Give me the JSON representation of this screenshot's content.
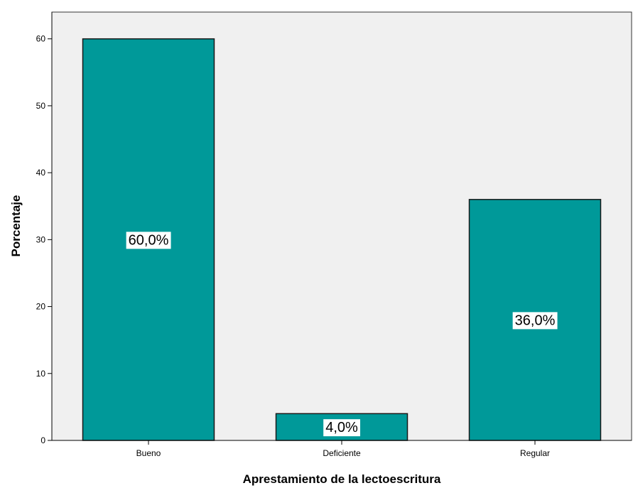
{
  "chart_data": {
    "type": "bar",
    "categories": [
      "Bueno",
      "Deficiente",
      "Regular"
    ],
    "values": [
      60,
      4,
      36
    ],
    "data_labels": [
      "60,0%",
      "4,0%",
      "36,0%"
    ],
    "title": "",
    "xlabel": "Aprestamiento de la lectoescritura",
    "ylabel": "Porcentaje",
    "ylim": [
      0,
      64
    ],
    "yticks": [
      0,
      10,
      20,
      30,
      40,
      50,
      60
    ],
    "grid": false,
    "legend": "none",
    "colors": {
      "bar_fill": "#009999",
      "bar_stroke": "#1a1a1a",
      "plot_background": "#f0f0f0",
      "label_box": "#ffffff"
    }
  }
}
